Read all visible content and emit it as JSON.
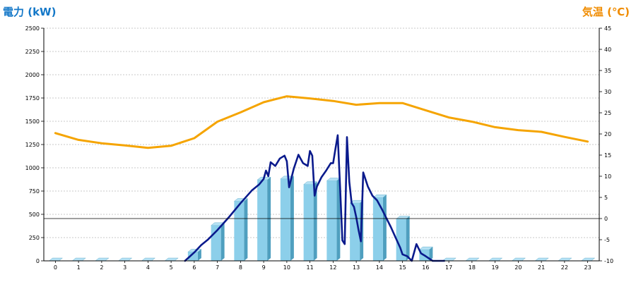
{
  "chart_data": {
    "type": "bar+line",
    "left_axis_title": "電力 (kW)",
    "right_axis_title": "気温 (℃)",
    "colors": {
      "left_title": "#1478c8",
      "right_title": "#f08c00",
      "bars": "#8ccfea",
      "bar_side": "#4f9fbf",
      "power_line": "#0a1a8c",
      "temp_line": "#f5a400",
      "grid": "#b8b8b8"
    },
    "x_labels": [
      "0",
      "1",
      "2",
      "3",
      "4",
      "5",
      "6",
      "7",
      "8",
      "9",
      "10",
      "11",
      "12",
      "13",
      "14",
      "15",
      "16",
      "17",
      "18",
      "19",
      "20",
      "21",
      "22",
      "23"
    ],
    "left_ticks": [
      "0",
      "250",
      "500",
      "750",
      "1000",
      "1250",
      "1500",
      "1750",
      "2000",
      "2250",
      "2500"
    ],
    "right_ticks": [
      "-10",
      "-5",
      "0",
      "5",
      "10",
      "15",
      "20",
      "25",
      "30",
      "35",
      "40",
      "45"
    ],
    "left_range": [
      0,
      2500
    ],
    "right_range": [
      -10,
      45
    ],
    "grid": "horizontal dashed",
    "series": [
      {
        "kind": "bar",
        "axis": "left",
        "x": [
          0,
          1,
          2,
          3,
          4,
          5,
          6,
          7,
          8,
          9,
          10,
          11,
          12,
          13,
          14,
          15,
          16,
          17,
          18,
          19,
          20,
          21,
          22,
          23
        ],
        "values": [
          0,
          0,
          0,
          0,
          0,
          0,
          95,
          380,
          640,
          870,
          880,
          820,
          860,
          620,
          680,
          450,
          120,
          0,
          0,
          0,
          0,
          0,
          0,
          0
        ]
      },
      {
        "kind": "line",
        "axis": "left",
        "x": [
          5.6,
          6.0,
          6.3,
          6.6,
          7.0,
          7.5,
          8.0,
          8.5,
          8.8,
          9.0,
          9.1,
          9.2,
          9.3,
          9.5,
          9.7,
          9.9,
          10.0,
          10.1,
          10.3,
          10.5,
          10.7,
          10.9,
          11.0,
          11.1,
          11.2,
          11.3,
          11.5,
          11.7,
          11.9,
          12.0,
          12.1,
          12.2,
          12.3,
          12.4,
          12.5,
          12.6,
          12.7,
          12.8,
          12.9,
          13.0,
          13.1,
          13.2,
          13.3,
          13.5,
          13.7,
          13.9,
          14.1,
          14.3,
          14.5,
          14.7,
          14.9,
          15.0,
          15.2,
          15.4,
          15.6,
          15.8,
          16.0,
          16.3,
          16.6,
          16.8
        ],
        "values": [
          0,
          90,
          170,
          230,
          330,
          470,
          620,
          760,
          820,
          880,
          970,
          910,
          1060,
          1020,
          1100,
          1130,
          1070,
          790,
          990,
          1140,
          1050,
          1020,
          1180,
          1130,
          700,
          800,
          900,
          970,
          1050,
          1050,
          1200,
          1350,
          800,
          220,
          180,
          1330,
          850,
          620,
          580,
          470,
          330,
          210,
          950,
          800,
          700,
          650,
          560,
          460,
          360,
          250,
          140,
          70,
          50,
          0,
          180,
          80,
          50,
          0,
          0,
          0
        ]
      },
      {
        "kind": "line",
        "axis": "right",
        "x": [
          0,
          1,
          2,
          3,
          4,
          5,
          6,
          7,
          8,
          9,
          10,
          11,
          12,
          13,
          14,
          15,
          16,
          17,
          18,
          19,
          20,
          21,
          22,
          23
        ],
        "values": [
          20.2,
          18.6,
          17.8,
          17.3,
          16.7,
          17.2,
          19.0,
          22.9,
          25.1,
          27.5,
          28.9,
          28.4,
          27.8,
          26.9,
          27.3,
          27.3,
          25.6,
          23.9,
          22.9,
          21.6,
          20.9,
          20.5,
          19.3,
          18.2
        ]
      }
    ]
  }
}
